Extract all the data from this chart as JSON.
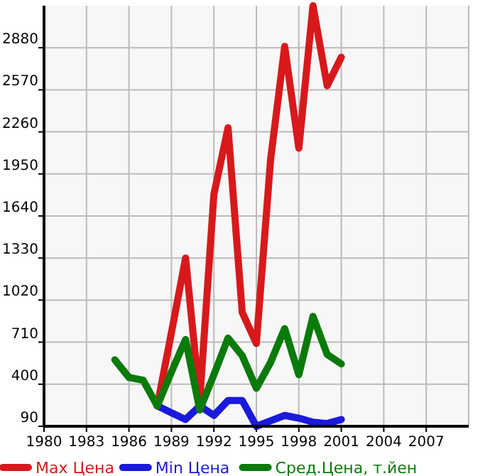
{
  "chart_data": {
    "type": "line",
    "x": [
      1985,
      1986,
      1987,
      1988,
      1989,
      1990,
      1991,
      1992,
      1993,
      1994,
      1995,
      1996,
      1997,
      1998,
      1999,
      2000,
      2001
    ],
    "series": [
      {
        "name": "Max Цена",
        "color": "#d7191c",
        "values": [
          null,
          null,
          null,
          240,
          780,
          1330,
          280,
          1800,
          2290,
          930,
          700,
          2050,
          2890,
          2140,
          3190,
          2600,
          2810
        ]
      },
      {
        "name": "Min Цена",
        "color": "#1a1adb",
        "values": [
          null,
          null,
          null,
          240,
          190,
          140,
          240,
          170,
          280,
          280,
          90,
          130,
          170,
          150,
          120,
          110,
          140
        ]
      },
      {
        "name": "Сред.Цена, т.йен",
        "color": "#0a7a0a",
        "values": [
          580,
          450,
          430,
          240,
          490,
          730,
          210,
          470,
          740,
          610,
          370,
          560,
          810,
          470,
          900,
          620,
          550
        ]
      }
    ],
    "xlim": [
      1980,
      2010
    ],
    "xticks": [
      1980,
      1983,
      1986,
      1989,
      1992,
      1995,
      1998,
      2001,
      2004,
      2007
    ],
    "ylim": [
      90,
      3190
    ],
    "yticks": [
      90,
      400,
      710,
      1020,
      1330,
      1640,
      1950,
      2260,
      2570,
      2880
    ],
    "grid": true,
    "legend": "bottom",
    "marker": "none",
    "line_style": "solid"
  }
}
